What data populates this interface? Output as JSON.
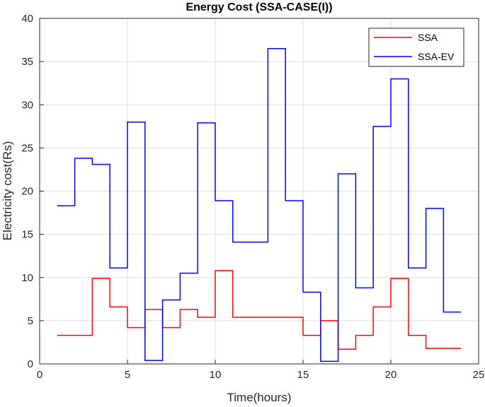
{
  "chart_data": {
    "type": "line",
    "title": "Energy Cost (SSA-CASE(I))",
    "xlabel": "Time(hours)",
    "ylabel": "Electricity cost(Rs)",
    "xlim": [
      0,
      25
    ],
    "ylim": [
      0,
      40
    ],
    "xticks": [
      0,
      5,
      10,
      15,
      20,
      25
    ],
    "yticks": [
      0,
      5,
      10,
      15,
      20,
      25,
      30,
      35,
      40
    ],
    "grid": true,
    "legend_position": "top-right",
    "step": true,
    "x": [
      1,
      2,
      3,
      4,
      5,
      6,
      7,
      8,
      9,
      10,
      11,
      12,
      13,
      14,
      15,
      16,
      17,
      18,
      19,
      20,
      21,
      22,
      23,
      24
    ],
    "series": [
      {
        "name": "SSA",
        "color": "#ff0000",
        "values": [
          3.3,
          3.3,
          9.9,
          6.6,
          4.2,
          6.3,
          4.2,
          6.3,
          5.4,
          10.8,
          5.4,
          5.4,
          5.4,
          5.4,
          3.3,
          5.0,
          1.7,
          3.3,
          6.6,
          9.9,
          3.3,
          1.8,
          1.8,
          1.8
        ]
      },
      {
        "name": "SSA-EV",
        "color": "#0000ff",
        "values": [
          18.3,
          23.8,
          23.1,
          11.1,
          28.0,
          0.4,
          7.4,
          10.5,
          27.9,
          18.9,
          14.1,
          14.1,
          36.5,
          18.9,
          8.3,
          0.3,
          22.0,
          8.8,
          27.5,
          33.0,
          11.1,
          18.0,
          6.0,
          6.0
        ]
      }
    ]
  }
}
